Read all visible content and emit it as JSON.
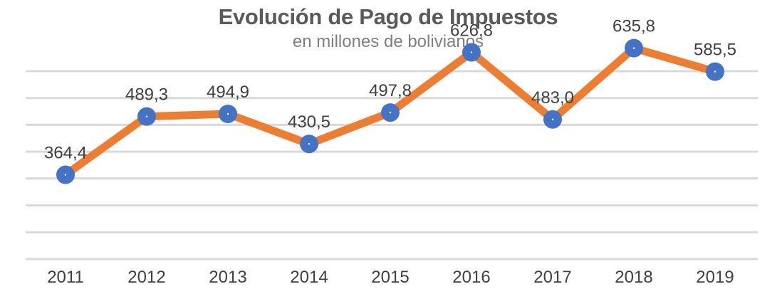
{
  "chart_data": {
    "type": "line",
    "title": "Evolución de Pago de Impuestos",
    "subtitle": "en millones de bolivianos",
    "categories": [
      "2011",
      "2012",
      "2013",
      "2014",
      "2015",
      "2016",
      "2017",
      "2018",
      "2019"
    ],
    "series": [
      {
        "values": [
          364.4,
          489.3,
          494.9,
          430.5,
          497.8,
          626.8,
          483.0,
          635.8,
          585.5
        ],
        "labels": [
          "364,4",
          "489,3",
          "494,9",
          "430,5",
          "497,8",
          "626,8",
          "483,0",
          "635,8",
          "585,5"
        ]
      }
    ],
    "grid": true,
    "legend": "none",
    "colors": {
      "line": "#ed7d31",
      "marker": "#4472c4",
      "grid": "#d9d9d9"
    }
  }
}
